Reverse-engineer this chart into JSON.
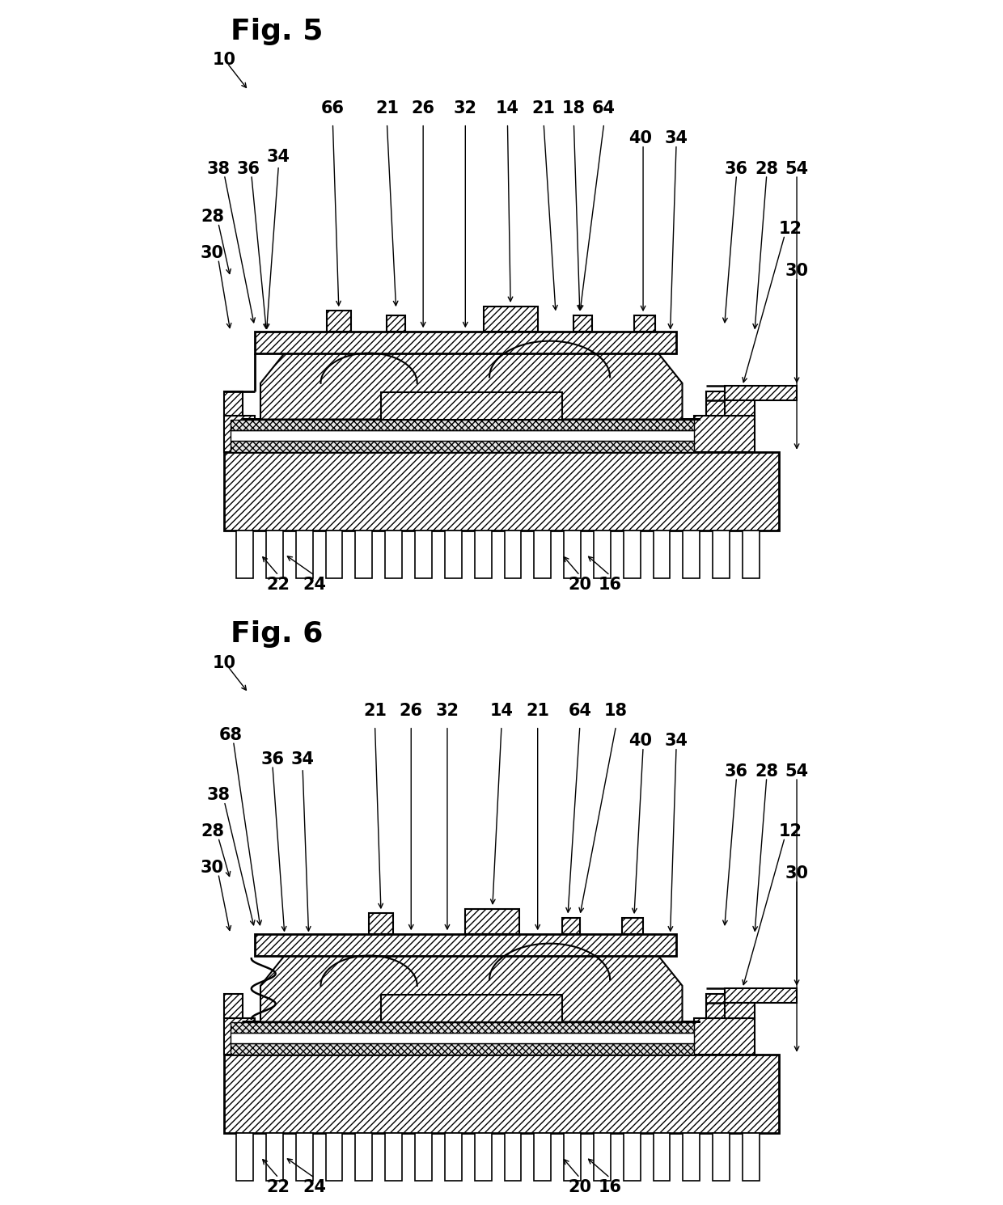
{
  "background": "#ffffff",
  "fig5_title": "Fig. 5",
  "fig6_title": "Fig. 6",
  "lw_thick": 2.0,
  "lw_med": 1.5,
  "lw_thin": 1.0,
  "label_fs": 15,
  "title_fs": 26
}
